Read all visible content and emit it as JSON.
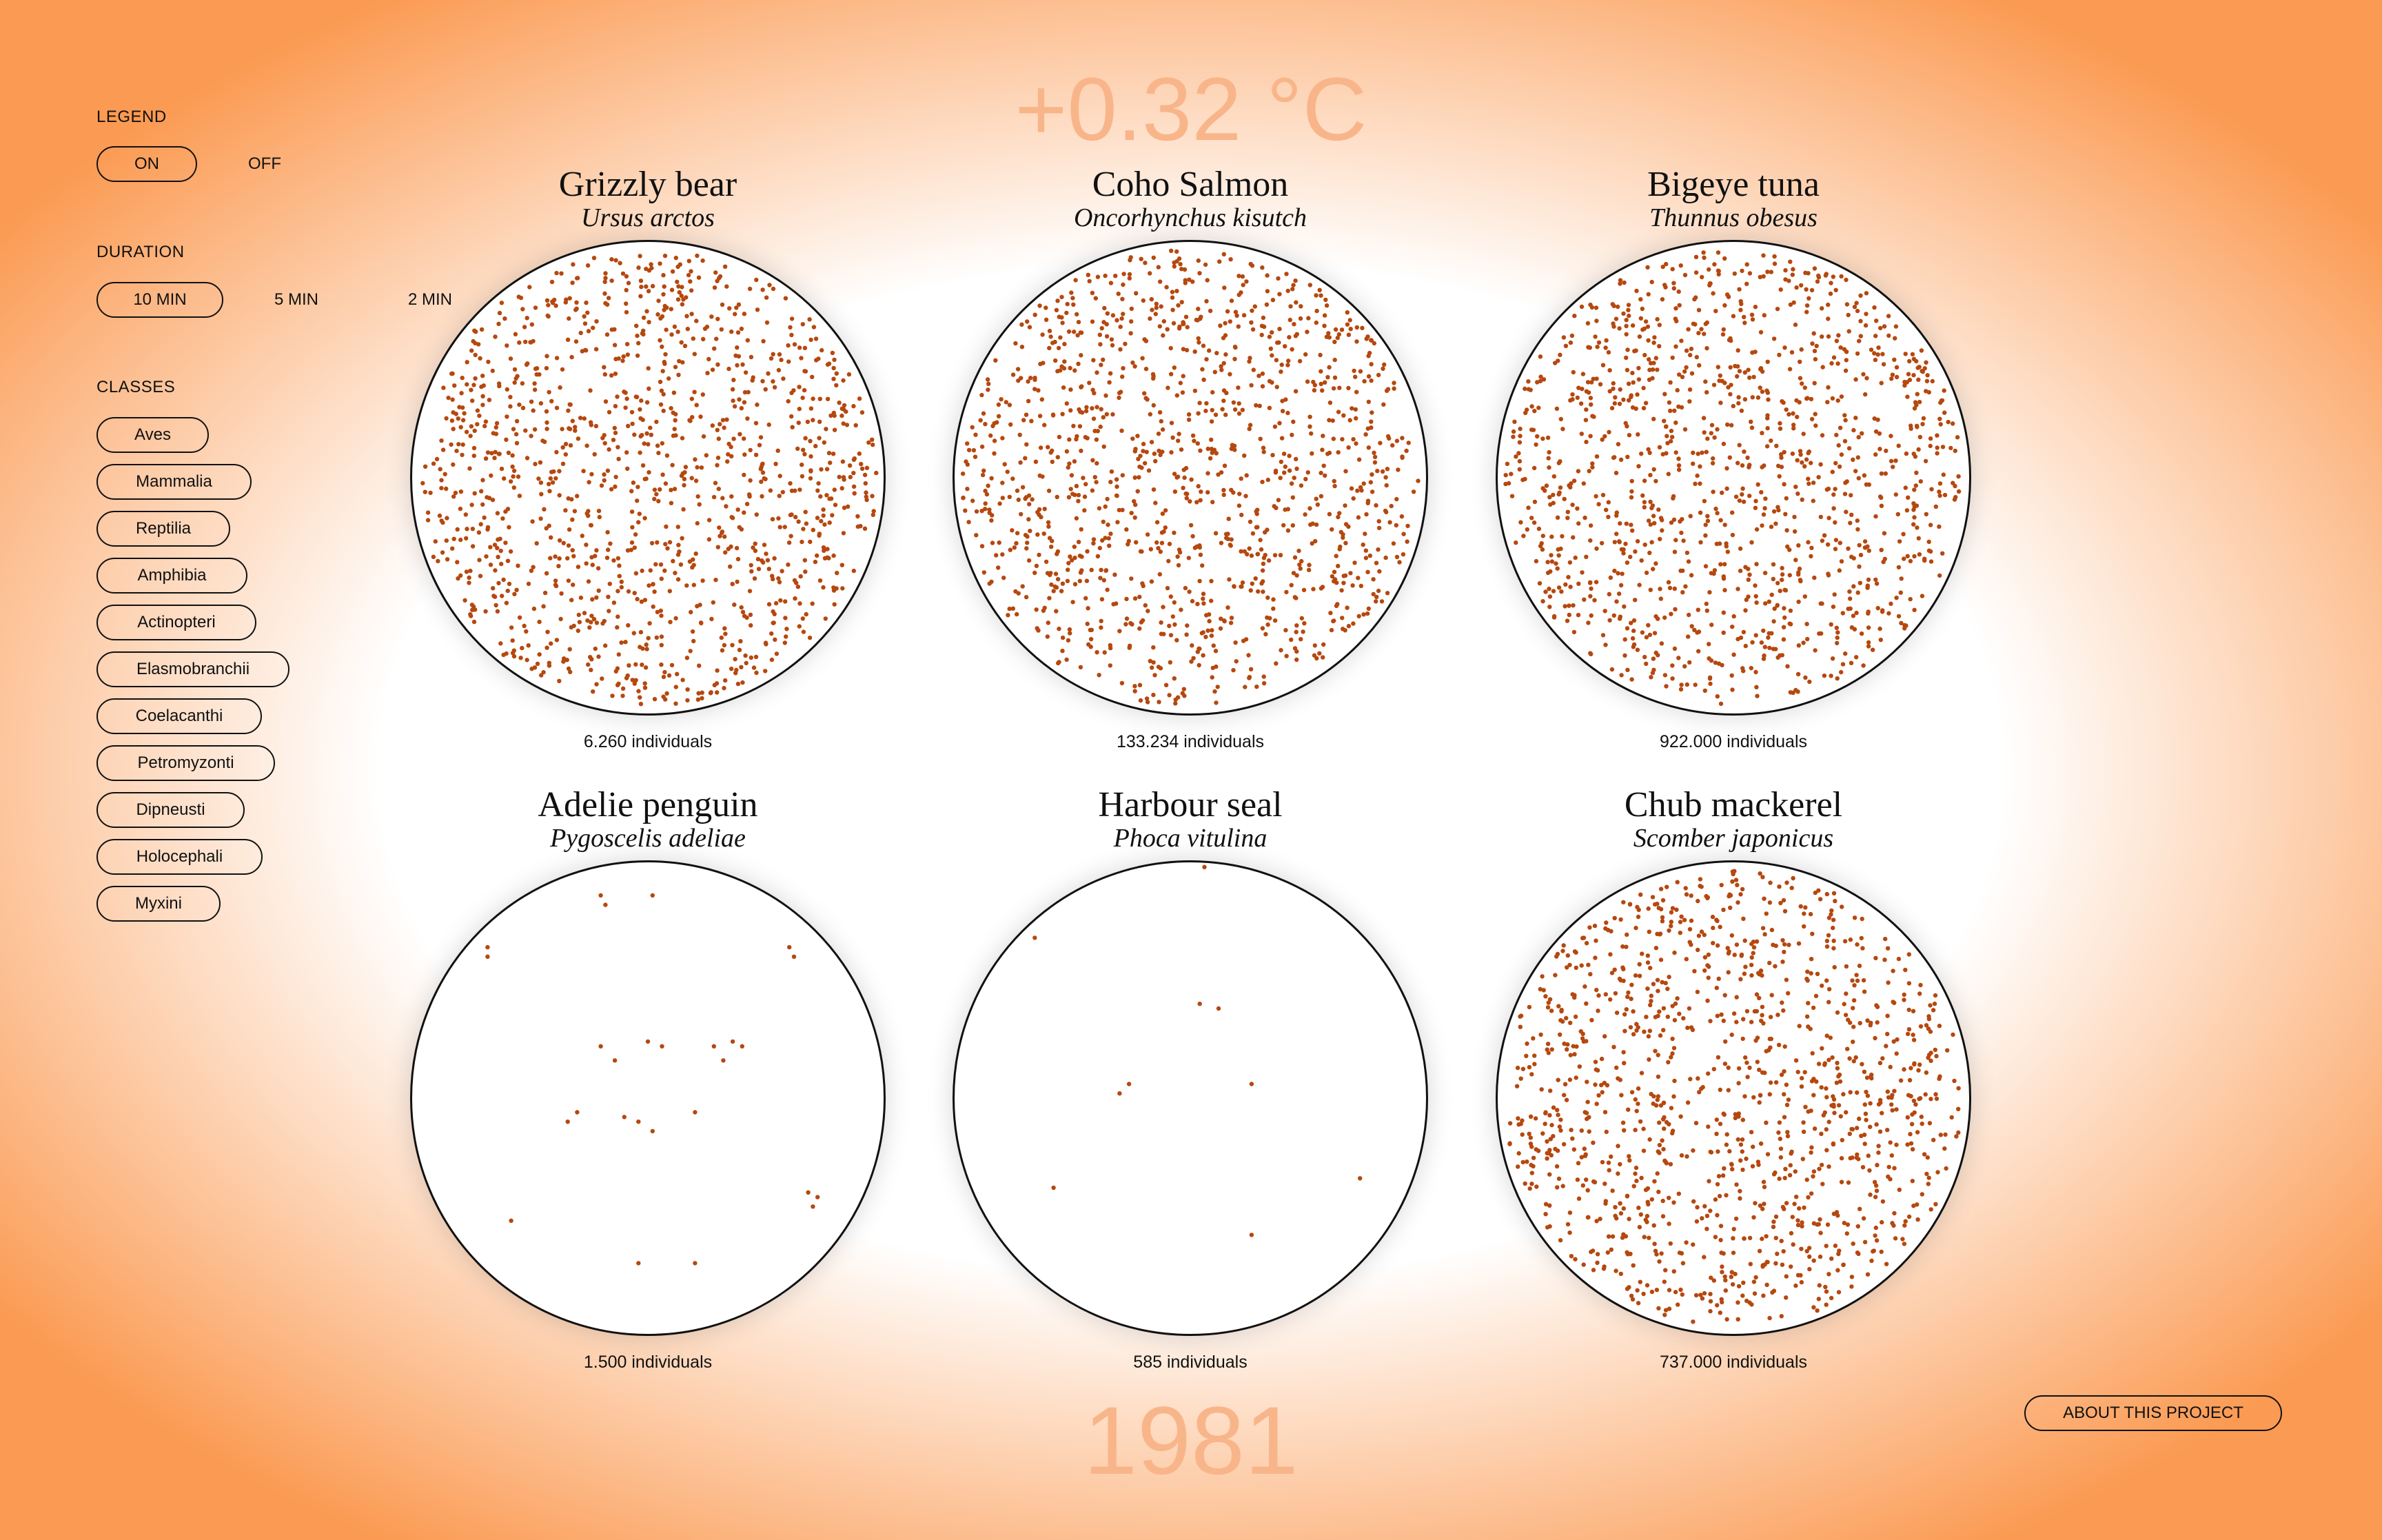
{
  "header": {
    "temperature": "+0.32 °C"
  },
  "footer": {
    "year": "1981",
    "about_label": "ABOUT THIS PROJECT"
  },
  "sidebar": {
    "legend": {
      "title": "LEGEND",
      "on": "ON",
      "off": "OFF"
    },
    "duration": {
      "title": "DURATION",
      "options": [
        "10 MIN",
        "5 MIN",
        "2 MIN"
      ],
      "selected": "10 MIN"
    },
    "classes": {
      "title": "CLASSES",
      "items": [
        "Aves",
        "Mammalia",
        "Reptilia",
        "Amphibia",
        "Actinopteri",
        "Elasmobranchii",
        "Coelacanthi",
        "Petromyzonti",
        "Dipneusti",
        "Holocephali",
        "Myxini"
      ]
    }
  },
  "species": [
    {
      "common": "Grizzly bear",
      "latin": "Ursus arctos",
      "count_label": "6.260 individuals",
      "density": "dense"
    },
    {
      "common": "Coho Salmon",
      "latin": "Oncorhynchus kisutch",
      "count_label": "133.234 individuals",
      "density": "dense"
    },
    {
      "common": "Bigeye tuna",
      "latin": "Thunnus obesus",
      "count_label": "922.000 individuals",
      "density": "dense"
    },
    {
      "common": "Adelie penguin",
      "latin": "Pygoscelis adeliae",
      "count_label": "1.500 individuals",
      "density": "sparse"
    },
    {
      "common": "Harbour seal",
      "latin": "Phoca vitulina",
      "count_label": "585 individuals",
      "density": "sparse"
    },
    {
      "common": "Chub mackerel",
      "latin": "Scomber japonicus",
      "count_label": "737.000 individuals",
      "density": "dense"
    }
  ],
  "colors": {
    "dot": "#b5480f",
    "accent": "#fb9a52",
    "big_text": "#f9b58a"
  }
}
